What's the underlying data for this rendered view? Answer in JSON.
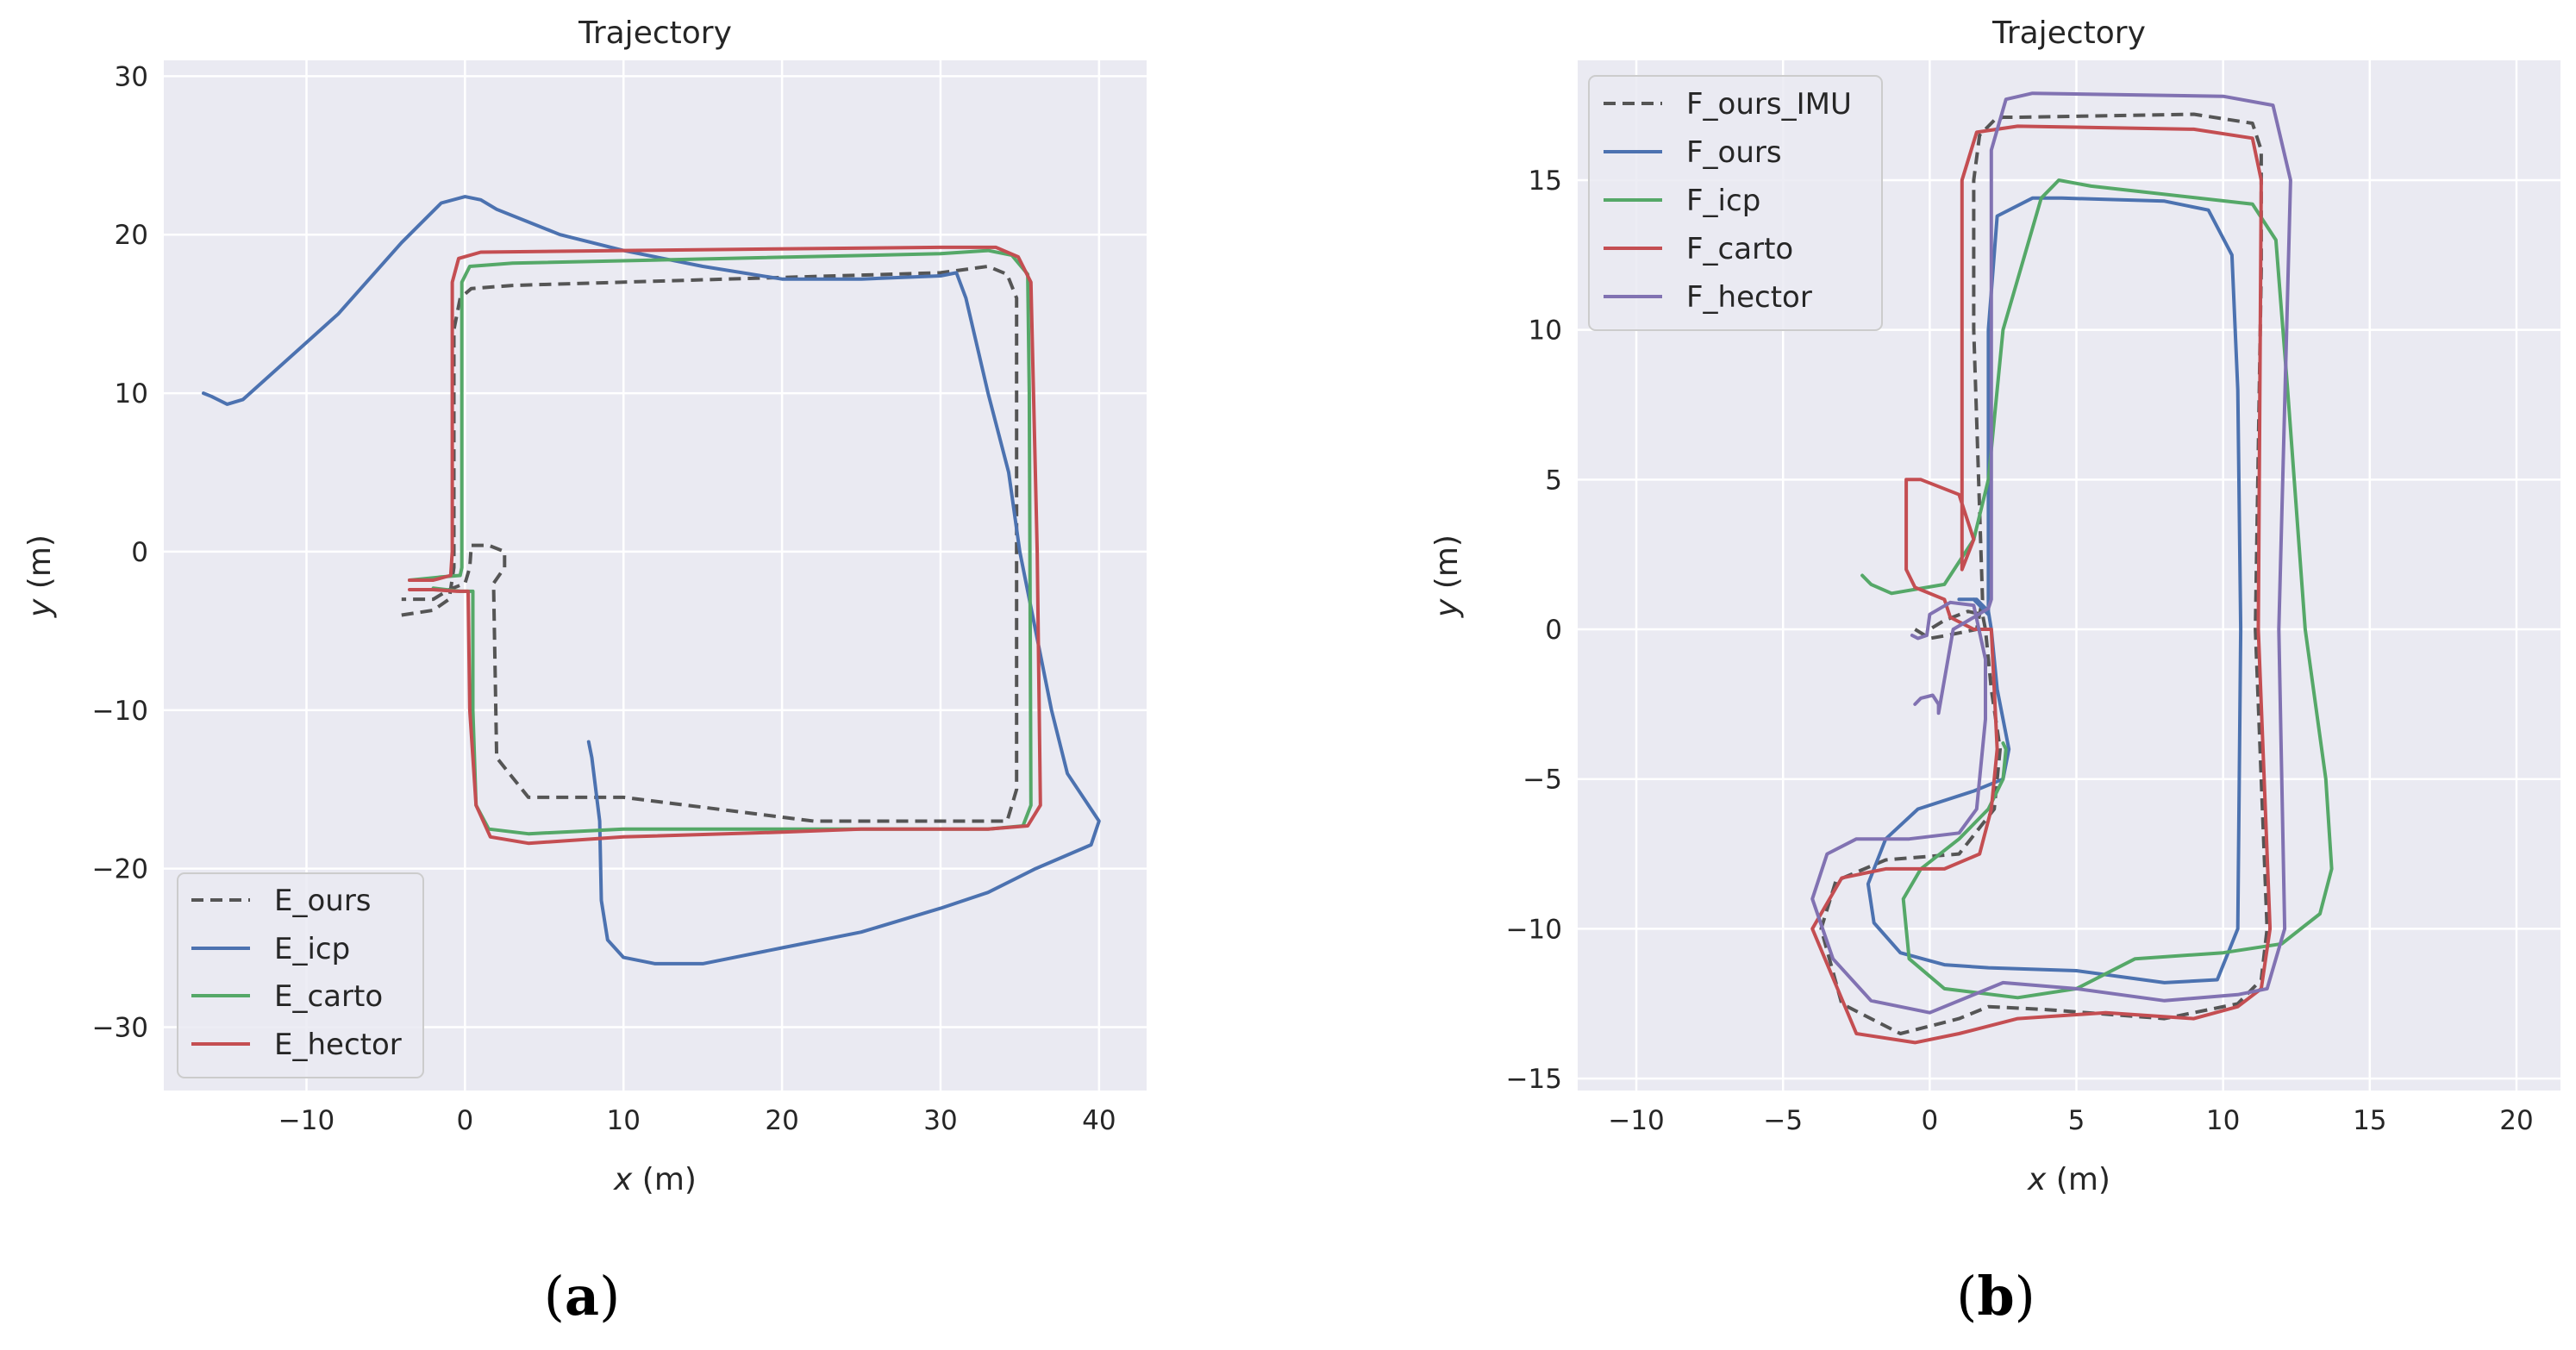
{
  "panels": [
    {
      "label_open": "(",
      "label_letter": "a",
      "label_close": ")"
    },
    {
      "label_open": "(",
      "label_letter": "b",
      "label_close": ")"
    }
  ],
  "style": {
    "background": "#eaeaf2",
    "grid_color": "#ffffff",
    "ours_color": "#555555",
    "icp_color": "#4c72b0",
    "carto_color": "#55a868",
    "hector_color": "#c44e52",
    "hector_b_color": "#8172b2"
  },
  "chart_data": [
    {
      "type": "line",
      "title": "Trajectory",
      "xlabel_var": "x",
      "xlabel_unit": " (m)",
      "ylabel_var": "y",
      "ylabel_unit": " (m)",
      "xlim": [
        -19,
        43
      ],
      "ylim": [
        -34,
        31
      ],
      "xticks": [
        -10,
        0,
        10,
        20,
        30,
        40
      ],
      "yticks": [
        -30,
        -20,
        -10,
        0,
        10,
        20,
        30
      ],
      "xtick_labels": [
        "−10",
        "0",
        "10",
        "20",
        "30",
        "40"
      ],
      "ytick_labels": [
        "−30",
        "−20",
        "−10",
        "0",
        "10",
        "20",
        "30"
      ],
      "legend_position": "lower-left",
      "series": [
        {
          "name": "E_ours",
          "color": "#555555",
          "dashed": true,
          "x": [
            -4,
            -2,
            -1,
            -0.7,
            -0.7,
            -0.3,
            0.4,
            3,
            30,
            33,
            34.2,
            34.8,
            34.8,
            34.2,
            32,
            22,
            10,
            4,
            2,
            1.8,
            2.5,
            2.5,
            1.5,
            0.4,
            0.3,
            0,
            -1,
            -2,
            -4
          ],
          "y": [
            -4,
            -3.7,
            -3,
            -1,
            14,
            16,
            16.6,
            16.8,
            17.6,
            18,
            17.5,
            16,
            -15,
            -17,
            -17,
            -17,
            -15.5,
            -15.5,
            -13,
            -2,
            -1,
            0,
            0.4,
            0.4,
            -1,
            -2,
            -2.4,
            -3,
            -3
          ]
        },
        {
          "name": "E_icp",
          "color": "#4c72b0",
          "dashed": false,
          "x": [
            -16.5,
            -16,
            -15,
            -14,
            -13,
            -8,
            -4,
            -1.5,
            0,
            1,
            2,
            6,
            10,
            15,
            20,
            25,
            30,
            31,
            31.6,
            33,
            34.3,
            35,
            36,
            37,
            38,
            40,
            39.5,
            36,
            33,
            30,
            25,
            20,
            15,
            12,
            10,
            9,
            8.6,
            8.5,
            8,
            7.8
          ],
          "y": [
            10,
            9.8,
            9.3,
            9.6,
            10.5,
            15,
            19.5,
            22,
            22.4,
            22.2,
            21.6,
            20,
            19,
            18,
            17.2,
            17.2,
            17.4,
            17.6,
            16,
            10,
            5,
            0,
            -5,
            -10,
            -14,
            -17,
            -18.5,
            -20,
            -21.5,
            -22.5,
            -24,
            -25,
            -26,
            -26,
            -25.6,
            -24.5,
            -22,
            -17,
            -13,
            -12
          ]
        },
        {
          "name": "E_carto",
          "color": "#55a868",
          "dashed": false,
          "x": [
            -3.5,
            -1.5,
            -0.3,
            -0.2,
            -0.2,
            0.3,
            3,
            30,
            33,
            34.5,
            35.5,
            35.6,
            35.7,
            35.2,
            33,
            25,
            10,
            4,
            1.5,
            0.7,
            0.5,
            0.5,
            -0.3,
            -2
          ],
          "y": [
            -1.8,
            -1.6,
            -1.5,
            -1,
            17,
            18,
            18.2,
            18.8,
            19,
            18.7,
            17.5,
            10,
            -16,
            -17.3,
            -17.5,
            -17.5,
            -17.5,
            -17.8,
            -17.5,
            -16,
            -10,
            -2.5,
            -2.5,
            -2.3
          ]
        },
        {
          "name": "E_hector",
          "color": "#c44e52",
          "dashed": false,
          "x": [
            -3.5,
            -2,
            -0.9,
            -0.8,
            -0.8,
            -0.4,
            1,
            10,
            30,
            33.5,
            34.9,
            35.7,
            36.1,
            36.3,
            35.5,
            33,
            25,
            20,
            10,
            4,
            1.6,
            0.7,
            0.3,
            0.2,
            -0.5,
            -2,
            -3.5
          ],
          "y": [
            -1.8,
            -1.8,
            -1.5,
            0,
            17,
            18.5,
            18.9,
            19,
            19.2,
            19.2,
            18.6,
            17,
            0,
            -16,
            -17.3,
            -17.5,
            -17.5,
            -17.7,
            -18,
            -18.4,
            -18,
            -16,
            -10,
            -2.5,
            -2.5,
            -2.4,
            -2.4
          ]
        }
      ]
    },
    {
      "type": "line",
      "title": "Trajectory",
      "xlabel_var": "x",
      "xlabel_unit": " (m)",
      "ylabel_var": "y",
      "ylabel_unit": " (m)",
      "xlim": [
        -12,
        21.5
      ],
      "ylim": [
        -15.4,
        19
      ],
      "xticks": [
        -10,
        -5,
        0,
        5,
        10,
        15,
        20
      ],
      "yticks": [
        -15,
        -10,
        -5,
        0,
        5,
        10,
        15
      ],
      "xtick_labels": [
        "−10",
        "−5",
        "0",
        "5",
        "10",
        "15",
        "20"
      ],
      "ytick_labels": [
        "−15",
        "−10",
        "−5",
        "0",
        "5",
        "10",
        "15"
      ],
      "legend_position": "top-left",
      "series": [
        {
          "name": "F_ours_IMU",
          "color": "#555555",
          "dashed": true,
          "x": [
            -0.5,
            0,
            0.6,
            1.6,
            1.8,
            1.5,
            1.5,
            1.7,
            2.2,
            2.5,
            3,
            9,
            11,
            11.3,
            11.3,
            11.1,
            11.5,
            11.3,
            10.5,
            8,
            4,
            2,
            1,
            -1,
            -3,
            -3.7,
            -3.2,
            -1.5,
            1,
            2.2,
            2.4,
            2.1,
            1.9,
            1.8,
            1.3,
            0.5,
            0
          ],
          "y": [
            0,
            -0.3,
            -0.2,
            0,
            1,
            10,
            15,
            16.5,
            17,
            17.1,
            17.1,
            17.2,
            16.9,
            16,
            12,
            0,
            -10,
            -11.7,
            -12.5,
            -13,
            -12.7,
            -12.6,
            -13,
            -13.5,
            -12.5,
            -10,
            -8.4,
            -7.7,
            -7.5,
            -6,
            -4,
            -2,
            0,
            0.5,
            0.6,
            0.3,
            0
          ]
        },
        {
          "name": "F_ours",
          "color": "#4c72b0",
          "dashed": false,
          "x": [
            1.5,
            2,
            2,
            2.3,
            3.5,
            4.5,
            8,
            9.5,
            10.3,
            10.5,
            10.6,
            10.5,
            9.8,
            8,
            5,
            2,
            0.5,
            -1,
            -1.9,
            -2.1,
            -1.5,
            -0.4,
            1.5,
            2.5,
            2.7,
            2.3,
            2.1,
            2,
            1.6,
            1
          ],
          "y": [
            1,
            0.5,
            10,
            13.8,
            14.4,
            14.4,
            14.3,
            14.0,
            12.5,
            8,
            0,
            -10,
            -11.7,
            -11.8,
            -11.4,
            -11.3,
            -11.2,
            -10.8,
            -9.8,
            -8.5,
            -7,
            -6,
            -5.4,
            -5,
            -4,
            -2,
            0,
            0.6,
            1,
            1
          ]
        },
        {
          "name": "F_icp",
          "color": "#55a868",
          "dashed": false,
          "x": [
            -2.3,
            -2,
            -1.3,
            0.5,
            1.5,
            2,
            2.5,
            3.8,
            4.4,
            5.5,
            11,
            11.8,
            12.2,
            12.8,
            13.5,
            13.7,
            13.3,
            12,
            10,
            7,
            5,
            3,
            0.5,
            -0.7,
            -0.9,
            -0.3,
            1,
            2,
            2.5,
            2.6,
            2.5
          ],
          "y": [
            1.8,
            1.5,
            1.2,
            1.5,
            3,
            5,
            10,
            14.4,
            15,
            14.8,
            14.2,
            13,
            8,
            0,
            -5,
            -8,
            -9.5,
            -10.5,
            -10.8,
            -11,
            -12,
            -12.3,
            -12,
            -11,
            -9,
            -8,
            -7,
            -6,
            -5,
            -4,
            -3.8
          ]
        },
        {
          "name": "F_carto",
          "color": "#c44e52",
          "dashed": false,
          "x": [
            2.1,
            1.5,
            0.7,
            0.5,
            -0.5,
            -0.8,
            -0.8,
            -0.3,
            1,
            1.5,
            1.1,
            1.1,
            1.6,
            3,
            9,
            11,
            11.3,
            11.2,
            11.6,
            11.3,
            10.5,
            9,
            6,
            3,
            1,
            -0.5,
            -2.5,
            -4,
            -3,
            -1.5,
            0.5,
            1.7,
            2.1,
            2.3,
            2.2,
            2.1,
            2
          ],
          "y": [
            0,
            0,
            0.4,
            1,
            1.4,
            2,
            5,
            5,
            4.5,
            3,
            2,
            15,
            16.6,
            16.8,
            16.7,
            16.4,
            15,
            0,
            -10,
            -12,
            -12.6,
            -13,
            -12.8,
            -13,
            -13.5,
            -13.8,
            -13.5,
            -10,
            -8.3,
            -8,
            -8,
            -7.5,
            -6,
            -4,
            -2,
            0,
            0
          ]
        },
        {
          "name": "F_hector",
          "color": "#8172b2",
          "dashed": false,
          "x": [
            -0.5,
            -0.3,
            0.1,
            0.3,
            0.3,
            0.8,
            1.5,
            2,
            2.1,
            2.1,
            2.6,
            3.5,
            10,
            11.7,
            12.3,
            11.9,
            12.1,
            11.5,
            10.5,
            8,
            5,
            2.5,
            0,
            -2,
            -3.3,
            -4,
            -3.5,
            -2.5,
            -0.7,
            1,
            1.6,
            1.9,
            1.9,
            1.5,
            0.7,
            0,
            -0.1,
            -0.4,
            -0.6
          ],
          "y": [
            -2.5,
            -2.3,
            -2.2,
            -2.5,
            -2.8,
            0,
            0.4,
            0.7,
            1,
            16,
            17.7,
            17.9,
            17.8,
            17.5,
            15,
            0,
            -10,
            -12,
            -12.2,
            -12.4,
            -12,
            -11.8,
            -12.8,
            -12.4,
            -11,
            -9,
            -7.5,
            -7,
            -7,
            -6.8,
            -6,
            -3,
            -1,
            0.8,
            0.9,
            0.5,
            -0.2,
            -0.3,
            -0.2
          ]
        }
      ]
    }
  ]
}
